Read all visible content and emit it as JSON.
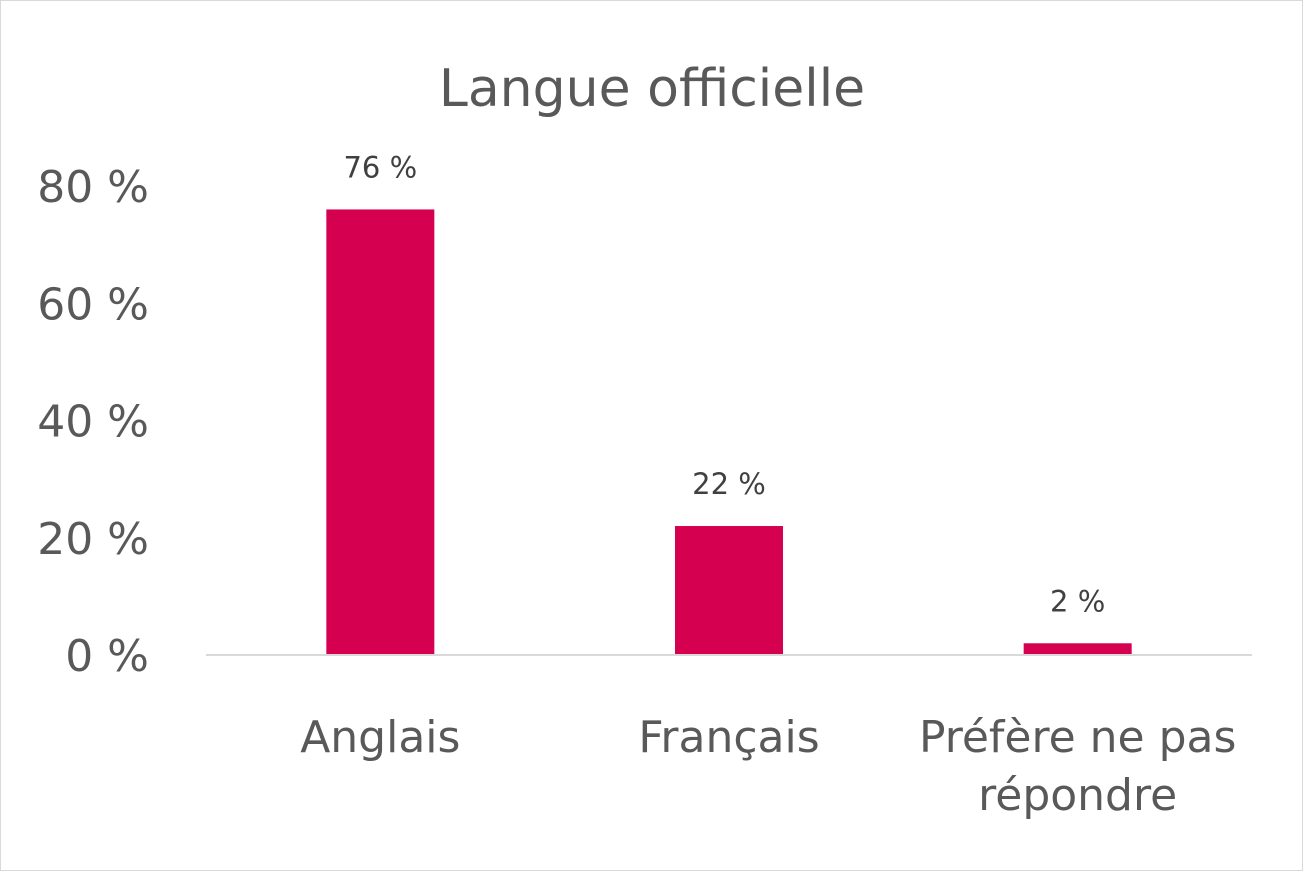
{
  "chart_data": {
    "type": "bar",
    "title": "Langue officielle",
    "categories": [
      "Anglais",
      "Français",
      "Préfère ne pas répondre"
    ],
    "category_lines": [
      [
        "Anglais"
      ],
      [
        "Français"
      ],
      [
        "Préfère ne pas",
        "répondre"
      ]
    ],
    "values": [
      76,
      22,
      2
    ],
    "data_labels": [
      "76 %",
      "22 %",
      "2 %"
    ],
    "y_ticks": [
      0,
      20,
      40,
      60,
      80
    ],
    "y_tick_labels": [
      "0 %",
      "20 %",
      "40 %",
      "60 %",
      "80 %"
    ],
    "ylim": [
      0,
      80
    ],
    "xlabel": "",
    "ylabel": "",
    "grid": false,
    "legend": "none",
    "bar_color": "#d5004f",
    "axis_color": "#d9d9d9"
  }
}
